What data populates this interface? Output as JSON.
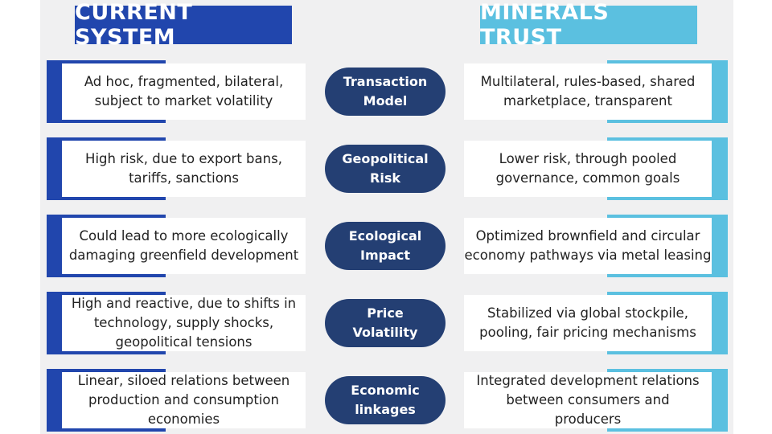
{
  "header": {
    "left": "CURRENT SYSTEM",
    "right": "MINERALS TRUST"
  },
  "rows": [
    {
      "left": [
        "Ad hoc, fragmented, bilateral,",
        "subject to market volatility"
      ],
      "label": [
        "Transaction",
        "Model"
      ],
      "right": [
        "Multilateral, rules-based, shared",
        "marketplace, transparent"
      ]
    },
    {
      "left": [
        "High risk, due to export bans,",
        "tariffs, sanctions"
      ],
      "label": [
        "Geopolitical",
        "Risk"
      ],
      "right": [
        "Lower risk, through pooled",
        "governance, common goals"
      ]
    },
    {
      "left": [
        "Could lead to more ecologically",
        "damaging greenfield development"
      ],
      "label": [
        "Ecological",
        "Impact"
      ],
      "right": [
        "Optimized brownfield and circular",
        "economy pathways via metal leasing"
      ]
    },
    {
      "left": [
        "High and reactive, due to shifts in",
        "technology, supply shocks,",
        "geopolitical tensions"
      ],
      "label": [
        "Price",
        "Volatility"
      ],
      "right": [
        "Stabilized via global stockpile,",
        "pooling, fair pricing mechanisms"
      ]
    },
    {
      "left": [
        "Linear, siloed relations between",
        "production and consumption",
        "economies"
      ],
      "label": [
        "Economic",
        "linkages"
      ],
      "right": [
        "Integrated development relations",
        "between consumers and",
        "producers"
      ]
    }
  ]
}
